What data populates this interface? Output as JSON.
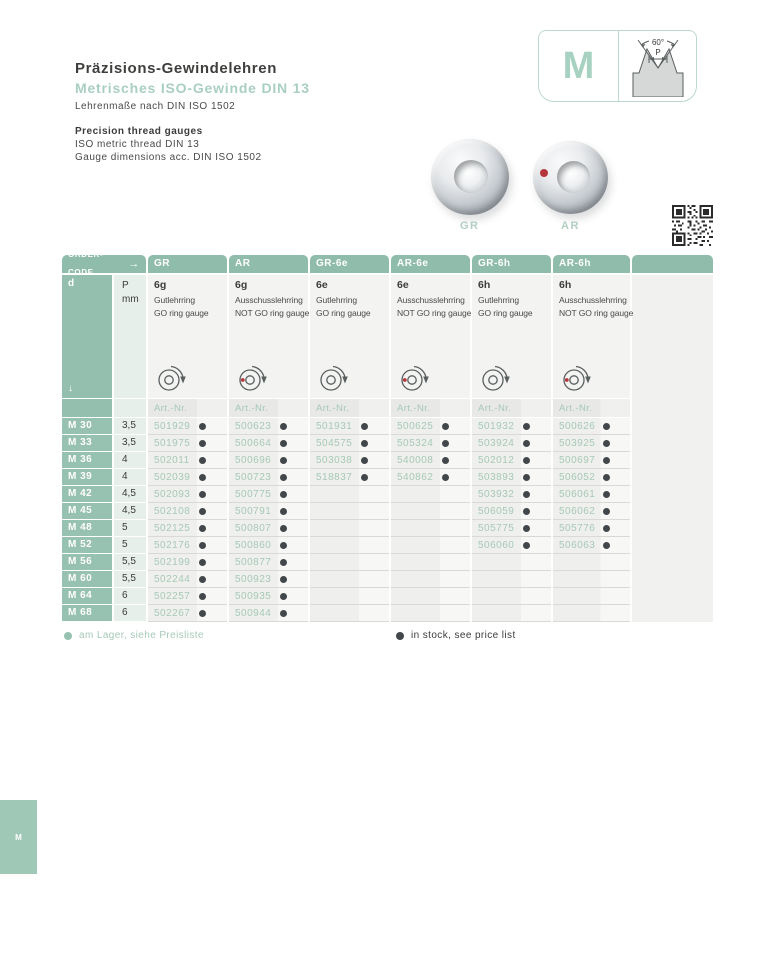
{
  "header": {
    "de_title": "Präzisions-Gewindelehren",
    "de_subtitle": "Metrisches ISO-Gewinde DIN 13",
    "de_note": "Lehrenmaße nach DIN ISO 1502",
    "en_title": "Precision thread gauges",
    "en_line1": "ISO metric thread DIN 13",
    "en_line2": "Gauge dimensions acc. DIN ISO 1502"
  },
  "badge": {
    "letter": "M",
    "angle_label": "60°",
    "pitch_label": "P"
  },
  "gauge_photos": {
    "gr_label": "GR",
    "ar_label": "AR"
  },
  "table": {
    "order_code_label": "ORDER-CODE",
    "order_code_arrow": "→",
    "d_label": "d",
    "down_arrow": "↓",
    "pitch_header": {
      "line1": "P",
      "line2": "mm"
    },
    "art_nr_label": "Art.-Nr.",
    "columns": [
      {
        "code": "GR",
        "tol": "6g",
        "name_de": "Gutlehrring",
        "name_en": "GO ring gauge",
        "icon": "go-ring-icon"
      },
      {
        "code": "AR",
        "tol": "6g",
        "name_de": "Ausschusslehrring",
        "name_en": "NOT GO ring gauge",
        "icon": "notgo-ring-icon"
      },
      {
        "code": "GR-6e",
        "tol": "6e",
        "name_de": "Gutlehrring",
        "name_en": "GO ring gauge",
        "icon": "go-ring-icon"
      },
      {
        "code": "AR-6e",
        "tol": "6e",
        "name_de": "Ausschusslehrring",
        "name_en": "NOT GO ring gauge",
        "icon": "notgo-ring-icon"
      },
      {
        "code": "GR-6h",
        "tol": "6h",
        "name_de": "Gutlehrring",
        "name_en": "GO ring gauge",
        "icon": "go-ring-icon"
      },
      {
        "code": "AR-6h",
        "tol": "6h",
        "name_de": "Ausschusslehrring",
        "name_en": "NOT GO ring gauge",
        "icon": "notgo-ring-icon"
      }
    ],
    "rows": [
      {
        "size": "M 30",
        "pitch": "3,5",
        "art_nrs": [
          "501929",
          "500623",
          "501931",
          "500625",
          "501932",
          "500626"
        ]
      },
      {
        "size": "M 33",
        "pitch": "3,5",
        "art_nrs": [
          "501975",
          "500664",
          "504575",
          "505324",
          "503924",
          "503925"
        ]
      },
      {
        "size": "M 36",
        "pitch": "4",
        "art_nrs": [
          "502011",
          "500696",
          "503038",
          "540008",
          "502012",
          "500697"
        ]
      },
      {
        "size": "M 39",
        "pitch": "4",
        "art_nrs": [
          "502039",
          "500723",
          "518837",
          "540862",
          "503893",
          "506052"
        ]
      },
      {
        "size": "M 42",
        "pitch": "4,5",
        "art_nrs": [
          "502093",
          "500775",
          "",
          "",
          "503932",
          "506061"
        ]
      },
      {
        "size": "M 45",
        "pitch": "4,5",
        "art_nrs": [
          "502108",
          "500791",
          "",
          "",
          "506059",
          "506062"
        ]
      },
      {
        "size": "M 48",
        "pitch": "5",
        "art_nrs": [
          "502125",
          "500807",
          "",
          "",
          "505775",
          "505776"
        ]
      },
      {
        "size": "M 52",
        "pitch": "5",
        "art_nrs": [
          "502176",
          "500860",
          "",
          "",
          "506060",
          "506063"
        ]
      },
      {
        "size": "M 56",
        "pitch": "5,5",
        "art_nrs": [
          "502199",
          "500877",
          "",
          "",
          "",
          ""
        ]
      },
      {
        "size": "M 60",
        "pitch": "5,5",
        "art_nrs": [
          "502244",
          "500923",
          "",
          "",
          "",
          ""
        ]
      },
      {
        "size": "M 64",
        "pitch": "6",
        "art_nrs": [
          "502257",
          "500935",
          "",
          "",
          "",
          ""
        ]
      },
      {
        "size": "M 68",
        "pitch": "6",
        "art_nrs": [
          "502267",
          "500944",
          "",
          "",
          "",
          ""
        ]
      }
    ]
  },
  "legend": {
    "de": "am Lager, siehe Preisliste",
    "en": "in stock, see price list"
  },
  "side_tab": {
    "label": "M"
  },
  "colors": {
    "accent_green": "#8fbcab",
    "light_green": "#e6efea",
    "art_nr_text": "#a6c9b8",
    "stock_dot": "#41474a",
    "notgo_mark_red": "#b5373b",
    "dark_text": "#3c3c3b"
  }
}
